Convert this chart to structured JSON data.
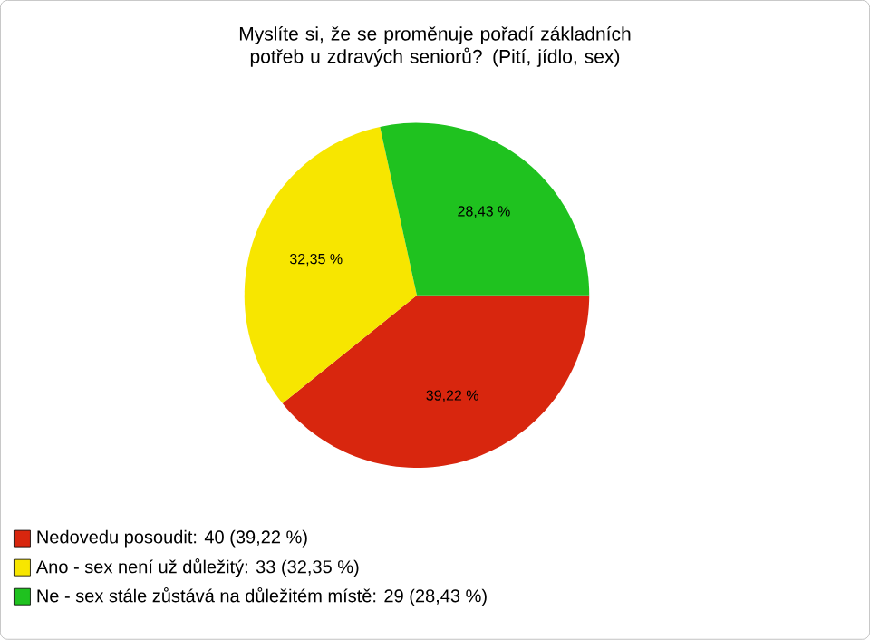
{
  "chart_data": {
    "type": "pie",
    "title": "Myslíte si, že se proměnuje pořadí základních potřeb u zdravých seniorů? (Pití, jídlo, sex)",
    "categories": [
      "Nedovedu posoudit: 40 (39,22 %)",
      "Ano - sex není už důležitý: 33 (32,35 %)",
      "Ne - sex stále zůstává na důležitém místě: 29 (28,43 %)"
    ],
    "values": [
      39.22,
      32.35,
      28.43
    ],
    "colors": [
      "#d8260e",
      "#f7e600",
      "#1fc21f"
    ],
    "value_labels": [
      "39,22 %",
      "32,35 %",
      "28,43 %"
    ],
    "legend": "bottom left"
  }
}
